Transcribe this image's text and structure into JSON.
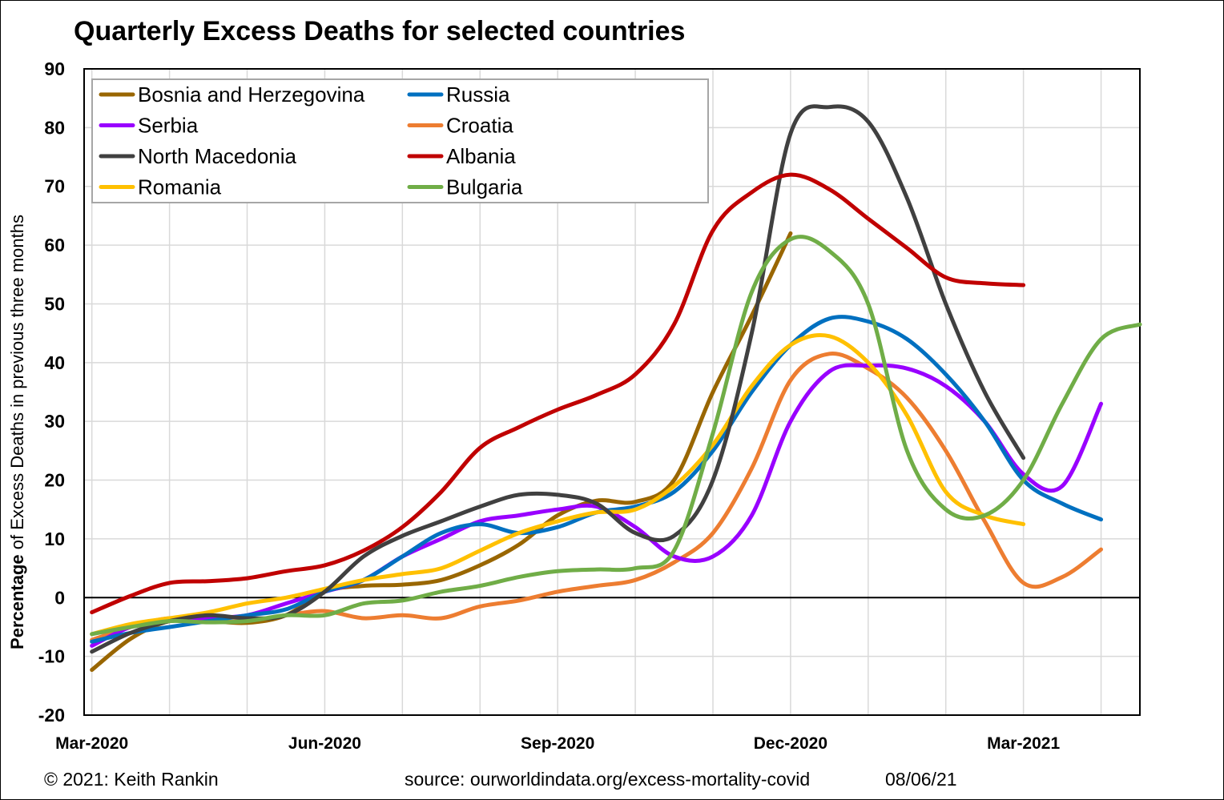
{
  "title": "Quarterly Excess Deaths for selected countries",
  "footer": {
    "copyright": "© 2021: Keith Rankin",
    "source": "source: ourworldindata.org/excess-mortality-covid",
    "date": "08/06/21"
  },
  "chart_data": {
    "type": "line",
    "title": "Quarterly Excess Deaths for selected countries",
    "ylabel_bold": "Percentage",
    "ylabel_rest": " of Excess Deaths in previous three months",
    "xlabel": "",
    "ylim": [
      -20,
      90
    ],
    "yticks": [
      -20,
      -10,
      0,
      10,
      20,
      30,
      40,
      50,
      60,
      70,
      80,
      90
    ],
    "x_unit": "months since Mar-2020 (week resolution)",
    "x_range": [
      -0.1,
      13.5
    ],
    "xticks": [
      {
        "x": 0,
        "label": "Mar-2020"
      },
      {
        "x": 3,
        "label": "Jun-2020"
      },
      {
        "x": 6,
        "label": "Sep-2020"
      },
      {
        "x": 9,
        "label": "Dec-2020"
      },
      {
        "x": 12,
        "label": "Mar-2021"
      }
    ],
    "grid": true,
    "legend_position": "top-left",
    "series": [
      {
        "name": "Bosnia and Herzegovina",
        "color": "#996600",
        "x": [
          0,
          0.5,
          1,
          1.5,
          2,
          2.5,
          3,
          3.5,
          4,
          4.5,
          5,
          5.5,
          6,
          6.5,
          7,
          7.5,
          8,
          8.5,
          9
        ],
        "y": [
          -12.3,
          -7,
          -4,
          -4,
          -4.3,
          -3,
          1,
          2,
          2.2,
          3,
          5.5,
          9,
          14,
          16.5,
          16.3,
          20,
          35,
          48,
          62
        ]
      },
      {
        "name": "Russia",
        "color": "#0070C0",
        "x": [
          0,
          0.5,
          1,
          1.5,
          2,
          2.5,
          3,
          3.5,
          4,
          4.5,
          5,
          5.5,
          6,
          6.5,
          7,
          7.5,
          8,
          8.5,
          9,
          9.5,
          10,
          10.5,
          11,
          11.5,
          12,
          12.5,
          13
        ],
        "y": [
          -7.5,
          -6,
          -5,
          -4,
          -3,
          -2,
          1,
          3,
          7,
          11,
          12.5,
          11,
          12,
          14.5,
          15.5,
          18,
          25,
          35,
          43,
          47.5,
          47,
          44,
          38,
          30,
          20,
          16,
          13.3
        ]
      },
      {
        "name": "Serbia",
        "color": "#9900FF",
        "x": [
          0,
          0.5,
          1,
          1.5,
          2,
          2.5,
          3,
          3.5,
          4,
          4.5,
          5,
          5.5,
          6,
          6.5,
          7,
          7.5,
          8,
          8.5,
          9,
          9.5,
          10,
          10.5,
          11,
          11.5,
          12,
          12.5,
          13
        ],
        "y": [
          -8.2,
          -5,
          -4,
          -3.5,
          -3,
          -1,
          1,
          3,
          7,
          10,
          13,
          14,
          15,
          15.5,
          12,
          7,
          7,
          14,
          30,
          38.5,
          39.5,
          39,
          36,
          30,
          21,
          19,
          33
        ]
      },
      {
        "name": "Croatia",
        "color": "#ED7D31",
        "x": [
          0,
          0.5,
          1,
          1.5,
          2,
          2.5,
          3,
          3.5,
          4,
          4.5,
          5,
          5.5,
          6,
          6.5,
          7,
          7.5,
          8,
          8.5,
          9,
          9.5,
          10,
          10.5,
          11,
          11.5,
          12,
          12.5,
          13
        ],
        "y": [
          -7.2,
          -5,
          -3.5,
          -4,
          -4,
          -3,
          -2.3,
          -3.5,
          -3,
          -3.5,
          -1.5,
          -0.5,
          1,
          2,
          3,
          6,
          11,
          22,
          37,
          41.5,
          39,
          34,
          25,
          13,
          2.5,
          3.5,
          8.2
        ]
      },
      {
        "name": "North Macedonia",
        "color": "#404040",
        "x": [
          0,
          0.5,
          1,
          1.5,
          2,
          2.5,
          3,
          3.5,
          4,
          4.5,
          5,
          5.5,
          6,
          6.5,
          7,
          7.5,
          8,
          8.5,
          9,
          9.5,
          10,
          10.5,
          11,
          11.5,
          12
        ],
        "y": [
          -9.2,
          -6,
          -4,
          -3,
          -3.5,
          -3,
          1,
          7,
          10.5,
          13,
          15.5,
          17.5,
          17.5,
          16,
          11,
          10.5,
          20,
          45,
          79,
          83.5,
          81,
          68,
          50,
          35,
          23.8
        ]
      },
      {
        "name": "Albania",
        "color": "#C00000",
        "x": [
          0,
          0.5,
          1,
          1.5,
          2,
          2.5,
          3,
          3.5,
          4,
          4.5,
          5,
          5.5,
          6,
          6.5,
          7,
          7.5,
          8,
          8.5,
          9,
          9.5,
          10,
          10.5,
          11,
          11.5,
          12
        ],
        "y": [
          -2.5,
          0.3,
          2.5,
          2.8,
          3.3,
          4.5,
          5.5,
          8,
          12,
          18,
          25.5,
          29,
          32,
          34.5,
          38,
          46.5,
          62.5,
          69,
          72,
          69.5,
          64.5,
          59.5,
          54.5,
          53.5,
          53.2
        ]
      },
      {
        "name": "Romania",
        "color": "#FFC000",
        "x": [
          0,
          0.5,
          1,
          1.5,
          2,
          2.5,
          3,
          3.5,
          4,
          4.5,
          5,
          5.5,
          6,
          6.5,
          7,
          7.5,
          8,
          8.5,
          9,
          9.5,
          10,
          10.5,
          11,
          11.5,
          12
        ],
        "y": [
          -6.2,
          -4.5,
          -3.5,
          -2.5,
          -1,
          0,
          1.5,
          3,
          4,
          5,
          8,
          11,
          13,
          14.5,
          15,
          19,
          26,
          36,
          43,
          44.5,
          40,
          31,
          18,
          14,
          12.5
        ]
      },
      {
        "name": "Bulgaria",
        "color": "#70AD47",
        "x": [
          0,
          0.5,
          1,
          1.5,
          2,
          2.5,
          3,
          3.5,
          4,
          4.5,
          5,
          5.5,
          6,
          6.5,
          7,
          7.5,
          8,
          8.5,
          9,
          9.5,
          10,
          10.5,
          11,
          11.5,
          12,
          12.5,
          13,
          13.5
        ],
        "y": [
          -6.2,
          -5,
          -4,
          -4.2,
          -4,
          -3,
          -3,
          -1,
          -0.5,
          1,
          2,
          3.5,
          4.5,
          4.8,
          5,
          8,
          28,
          52,
          61,
          59,
          50,
          25,
          15,
          14,
          20,
          33,
          44,
          46.5
        ]
      }
    ]
  }
}
